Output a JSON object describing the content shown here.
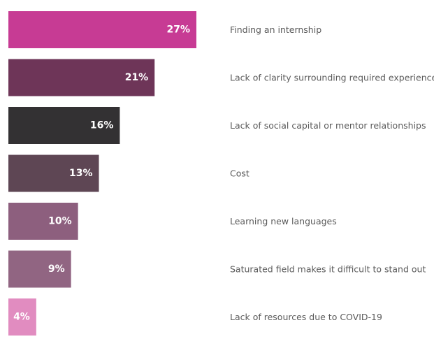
{
  "chart_data": {
    "type": "bar",
    "orientation": "horizontal",
    "categories": [
      "Finding an internship",
      "Lack of clarity surrounding required experience",
      "Lack of social capital or mentor relationships",
      "Cost",
      "Learning new languages",
      "Saturated field makes it difficult to stand out",
      "Lack of resources due to COVID-19"
    ],
    "values": [
      27,
      21,
      16,
      13,
      10,
      9,
      4
    ],
    "value_labels": [
      "27%",
      "21%",
      "16%",
      "13%",
      "10%",
      "9%",
      "4%"
    ],
    "colors": [
      "#c73b94",
      "#6e3558",
      "#333133",
      "#5e4654",
      "#8d5f7e",
      "#916582",
      "#e18cc0"
    ],
    "xlim": [
      0,
      27
    ],
    "grid": false,
    "legend": "none"
  }
}
